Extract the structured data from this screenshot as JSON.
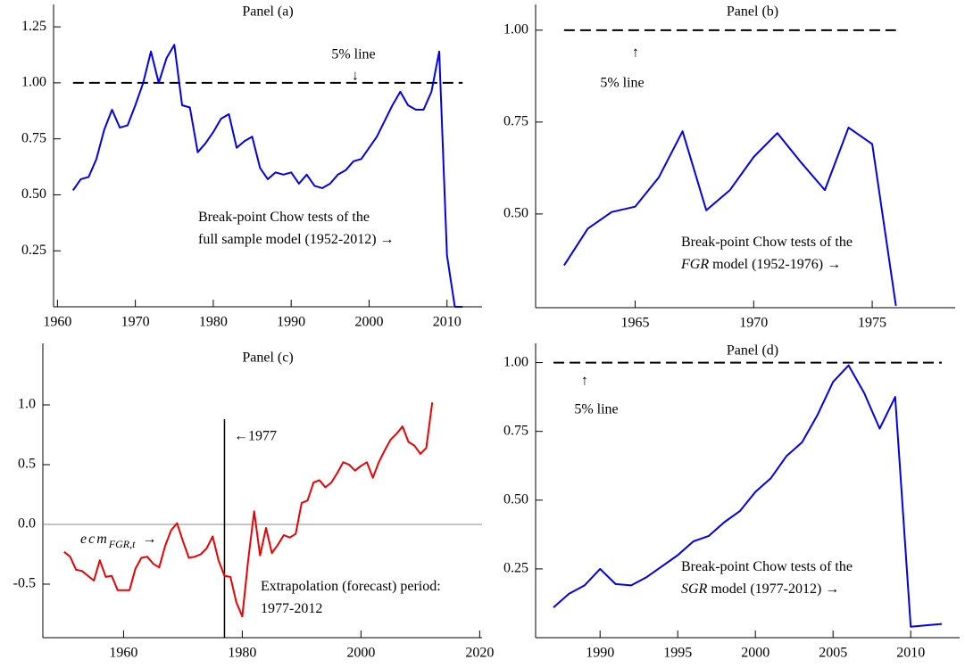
{
  "chart_data": [
    {
      "type": "line",
      "title": "Panel (a)",
      "color": "#0000ee",
      "x": [
        1962,
        1963,
        1964,
        1965,
        1966,
        1967,
        1968,
        1969,
        1970,
        1971,
        1972,
        1973,
        1974,
        1975,
        1976,
        1977,
        1978,
        1979,
        1980,
        1981,
        1982,
        1983,
        1984,
        1985,
        1986,
        1987,
        1988,
        1989,
        1990,
        1991,
        1992,
        1993,
        1994,
        1995,
        1996,
        1997,
        1998,
        1999,
        2000,
        2001,
        2002,
        2003,
        2004,
        2005,
        2006,
        2007,
        2008,
        2009,
        2010,
        2011,
        2012
      ],
      "values": [
        0.52,
        0.57,
        0.58,
        0.66,
        0.79,
        0.88,
        0.8,
        0.81,
        0.9,
        1.0,
        1.14,
        1.0,
        1.11,
        1.17,
        0.9,
        0.89,
        0.69,
        0.73,
        0.78,
        0.84,
        0.86,
        0.71,
        0.74,
        0.76,
        0.62,
        0.57,
        0.6,
        0.59,
        0.6,
        0.55,
        0.59,
        0.54,
        0.53,
        0.55,
        0.59,
        0.61,
        0.65,
        0.66,
        0.71,
        0.76,
        0.83,
        0.9,
        0.96,
        0.9,
        0.88,
        0.88,
        0.96,
        1.14,
        0.23,
        0.0,
        0.0
      ],
      "xlim": [
        1959.5,
        2014.5
      ],
      "ylim": [
        0,
        1.35
      ],
      "xticks": [
        1960,
        1970,
        1980,
        1990,
        2000,
        2010
      ],
      "yticks": [
        0.25,
        {
          "value": 0.5,
          "label": "0.50"
        },
        0.75,
        {
          "value": 1,
          "label": "1.00"
        },
        1.25
      ],
      "hline": 1,
      "hline_style": "dashed",
      "hline_label": "5% line",
      "hline_arrow": "↓",
      "notes": [
        {
          "text": "Break-point Chow tests of the"
        },
        {
          "text": "full sample model (1952-2012) →"
        }
      ]
    },
    {
      "type": "line",
      "title": "Panel (b)",
      "color": "#0000ee",
      "x": [
        1962,
        1963,
        1964,
        1965,
        1966,
        1967,
        1968,
        1969,
        1970,
        1971,
        1972,
        1973,
        1974,
        1975,
        1976
      ],
      "values": [
        0.36,
        0.46,
        0.505,
        0.52,
        0.6,
        0.725,
        0.51,
        0.565,
        0.655,
        0.72,
        0.64,
        0.565,
        0.735,
        0.69,
        0.25
      ],
      "xlim": [
        1960.8,
        1978.5
      ],
      "ylim": [
        0.245,
        1.07
      ],
      "xticks": [
        1965,
        1970,
        1975
      ],
      "yticks": [
        {
          "value": 0.5,
          "label": "0.50"
        },
        0.75,
        {
          "value": 1,
          "label": "1.00"
        }
      ],
      "hline": 1,
      "hline_style": "dashed",
      "hline_label": "5% line",
      "hline_arrow": "↑",
      "notes": [
        {
          "text": "Break-point Chow tests of the"
        },
        {
          "italic": "FGR",
          "text": "model (1952-1976) →"
        }
      ]
    },
    {
      "type": "line",
      "title": "Panel (c)",
      "color": "#ee0000",
      "x": [
        1950,
        1951,
        1952,
        1953,
        1954,
        1955,
        1956,
        1957,
        1958,
        1959,
        1960,
        1961,
        1962,
        1963,
        1964,
        1965,
        1966,
        1967,
        1968,
        1969,
        1970,
        1971,
        1972,
        1973,
        1974,
        1975,
        1976,
        1977,
        1978,
        1979,
        1980,
        1981,
        1982,
        1983,
        1984,
        1985,
        1986,
        1987,
        1988,
        1989,
        1990,
        1991,
        1992,
        1993,
        1994,
        1995,
        1996,
        1997,
        1998,
        1999,
        2000,
        2001,
        2002,
        2003,
        2004,
        2005,
        2006,
        2007,
        2008,
        2009,
        2010,
        2011,
        2012
      ],
      "values": [
        -0.23,
        -0.27,
        -0.38,
        -0.39,
        -0.43,
        -0.47,
        -0.3,
        -0.44,
        -0.43,
        -0.55,
        -0.55,
        -0.55,
        -0.37,
        -0.28,
        -0.27,
        -0.33,
        -0.36,
        -0.18,
        -0.05,
        0.01,
        -0.14,
        -0.28,
        -0.27,
        -0.25,
        -0.2,
        -0.1,
        -0.3,
        -0.43,
        -0.44,
        -0.65,
        -0.77,
        -0.3,
        0.11,
        -0.26,
        -0.03,
        -0.24,
        -0.17,
        -0.09,
        -0.11,
        -0.08,
        0.18,
        0.2,
        0.35,
        0.37,
        0.31,
        0.35,
        0.43,
        0.52,
        0.5,
        0.45,
        0.49,
        0.52,
        0.39,
        0.52,
        0.62,
        0.71,
        0.76,
        0.82,
        0.69,
        0.66,
        0.59,
        0.64,
        1.02
      ],
      "xlim": [
        1946.4,
        2020.4
      ],
      "ylim": [
        -0.948,
        1.515
      ],
      "xticks": [
        1960,
        1980,
        2000,
        2020
      ],
      "yticks": [
        -0.5,
        {
          "value": 0,
          "label": "0.0"
        },
        0.5,
        {
          "value": 1,
          "label": "1.0"
        }
      ],
      "hline": 0,
      "hline_style": "solid",
      "vline": 1977,
      "vline_label": "←1977",
      "notes": [
        {
          "italic": "ecm",
          "sub": "FGR,t",
          "text": "→"
        },
        {
          "text": "Extrapolation (forecast) period:"
        },
        {
          "text": "1977-2012"
        }
      ]
    },
    {
      "type": "line",
      "title": "Panel (d)",
      "color": "#0000ee",
      "x": [
        1987,
        1988,
        1989,
        1990,
        1991,
        1992,
        1993,
        1994,
        1995,
        1996,
        1997,
        1998,
        1999,
        2000,
        2001,
        2002,
        2003,
        2004,
        2005,
        2006,
        2007,
        2008,
        2009,
        2010,
        2011,
        2012
      ],
      "values": [
        0.11,
        0.16,
        0.19,
        0.25,
        0.195,
        0.19,
        0.22,
        0.26,
        0.3,
        0.35,
        0.37,
        0.42,
        0.46,
        0.53,
        0.58,
        0.66,
        0.71,
        0.81,
        0.93,
        0.99,
        0.89,
        0.76,
        0.875,
        0.04,
        0.045,
        0.05
      ],
      "xlim": [
        1985.85,
        2013.15
      ],
      "ylim": [
        0,
        1.07
      ],
      "xticks": [
        1990,
        1995,
        2000,
        2005,
        2010
      ],
      "yticks": [
        0.25,
        {
          "value": 0.5,
          "label": "0.50"
        },
        0.75,
        {
          "value": 1,
          "label": "1.00"
        }
      ],
      "hline": 1,
      "hline_style": "dashed",
      "hline_label": "5% line",
      "hline_arrow": "↑",
      "notes": [
        {
          "text": "Break-point Chow tests of the"
        },
        {
          "italic": "SGR",
          "text": "model (1977-2012) →"
        }
      ]
    }
  ]
}
